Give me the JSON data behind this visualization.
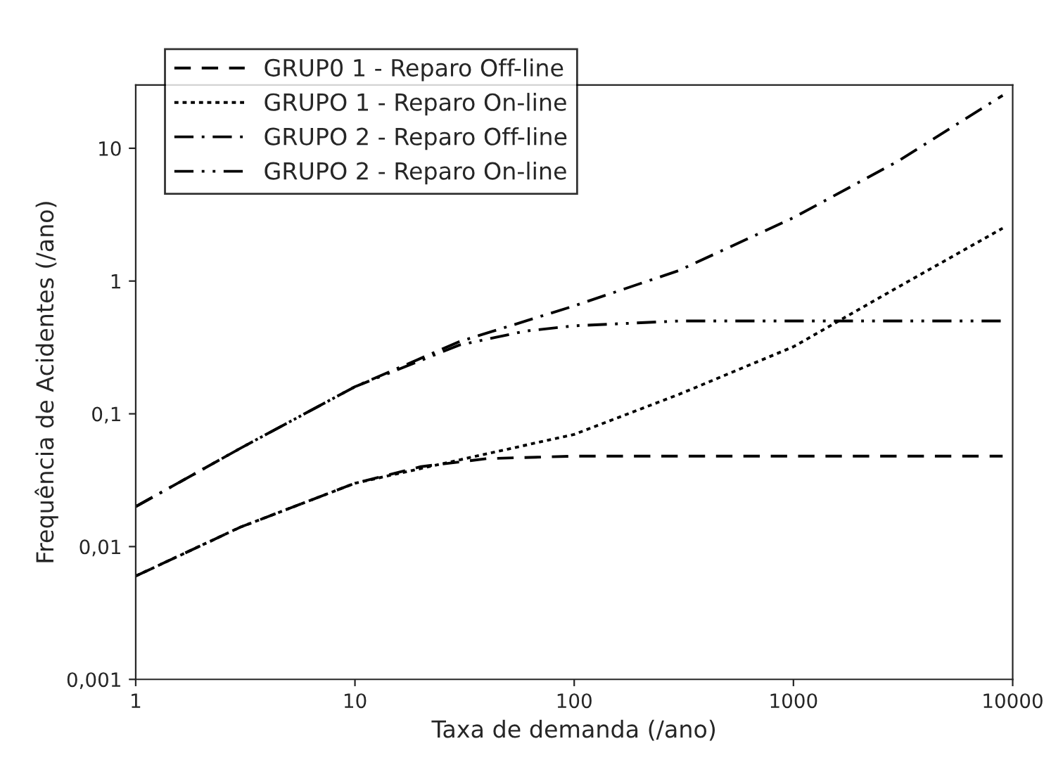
{
  "chart_data": {
    "type": "line",
    "xlabel": "Taxa de demanda (/ano)",
    "ylabel": "Frequência de Acidentes (/ano)",
    "log": "xy",
    "xlim": [
      1,
      10000
    ],
    "ylim": [
      0.001,
      30
    ],
    "xticks": [
      1,
      10,
      100,
      1000,
      10000
    ],
    "yticks": [
      {
        "value": 0.001,
        "label": "0,001"
      },
      {
        "value": 0.01,
        "label": "0,01"
      },
      {
        "value": 0.1,
        "label": "0,1"
      },
      1,
      10
    ],
    "grid": false,
    "legend": "top left",
    "marker": "none",
    "series": [
      {
        "name": "GRUP0 1 - Reparo Off-line",
        "color": "#000000",
        "line_style": "dashed",
        "x": [
          1,
          3,
          10,
          20,
          40,
          100,
          1000,
          9000
        ],
        "values": [
          0.006,
          0.014,
          0.03,
          0.04,
          0.046,
          0.048,
          0.048,
          0.048
        ]
      },
      {
        "name": "GRUPO 1 - Reparo On-line",
        "color": "#000000",
        "line_style": "dotted",
        "x": [
          1,
          3,
          10,
          30,
          100,
          300,
          1000,
          3000,
          9000
        ],
        "values": [
          0.006,
          0.014,
          0.03,
          0.045,
          0.07,
          0.14,
          0.32,
          0.9,
          2.5
        ]
      },
      {
        "name": "GRUPO 2 - Reparo Off-line",
        "color": "#000000",
        "line_style": "dashdot",
        "x": [
          1,
          3,
          10,
          30,
          100,
          300,
          1000,
          3000,
          9000
        ],
        "values": [
          0.02,
          0.055,
          0.16,
          0.35,
          0.65,
          1.2,
          3,
          8,
          25
        ]
      },
      {
        "name": "GRUPO 2 - Reparo On-line",
        "color": "#000000",
        "line_style": "dashdotdot",
        "x": [
          1,
          3,
          10,
          30,
          60,
          100,
          300,
          1000,
          9000
        ],
        "values": [
          0.02,
          0.055,
          0.16,
          0.33,
          0.42,
          0.46,
          0.5,
          0.5,
          0.5
        ]
      }
    ]
  }
}
